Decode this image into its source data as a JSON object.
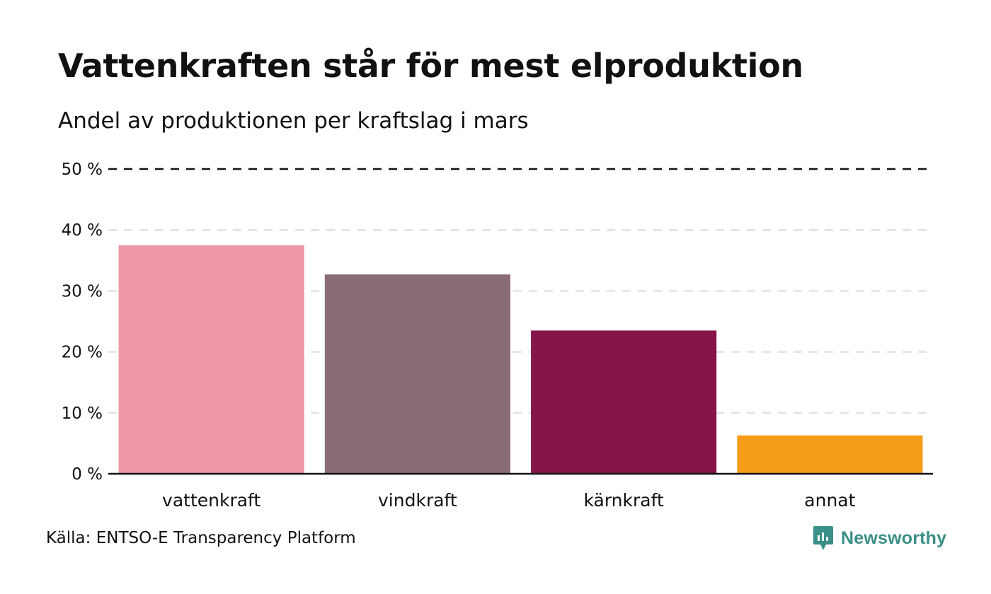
{
  "chart_data": {
    "type": "bar",
    "title": "Vattenkraften står för mest elproduktion",
    "subtitle": "Andel av produktionen per kraftslag i mars",
    "categories": [
      "vattenkraft",
      "vindkraft",
      "kärnkraft",
      "annat"
    ],
    "values": [
      37.5,
      32.7,
      23.5,
      6.3
    ],
    "colors": [
      "#ee98a7",
      "#8a6c74",
      "#86164a",
      "#f59c19"
    ],
    "ylim": [
      0,
      50
    ],
    "yticks": [
      0,
      10,
      20,
      30,
      40,
      50
    ],
    "ytick_labels": [
      "0 %",
      "10 %",
      "20 %",
      "30 %",
      "40 %",
      "50 %"
    ],
    "reference_line": 50,
    "xlabel": "",
    "ylabel": "",
    "grid": true
  },
  "source": "Källa: ENTSO-E Transparency Platform",
  "brand": {
    "name": "Newsworthy",
    "icon": "newsworthy-logo-icon",
    "color": "#3a8f87"
  }
}
